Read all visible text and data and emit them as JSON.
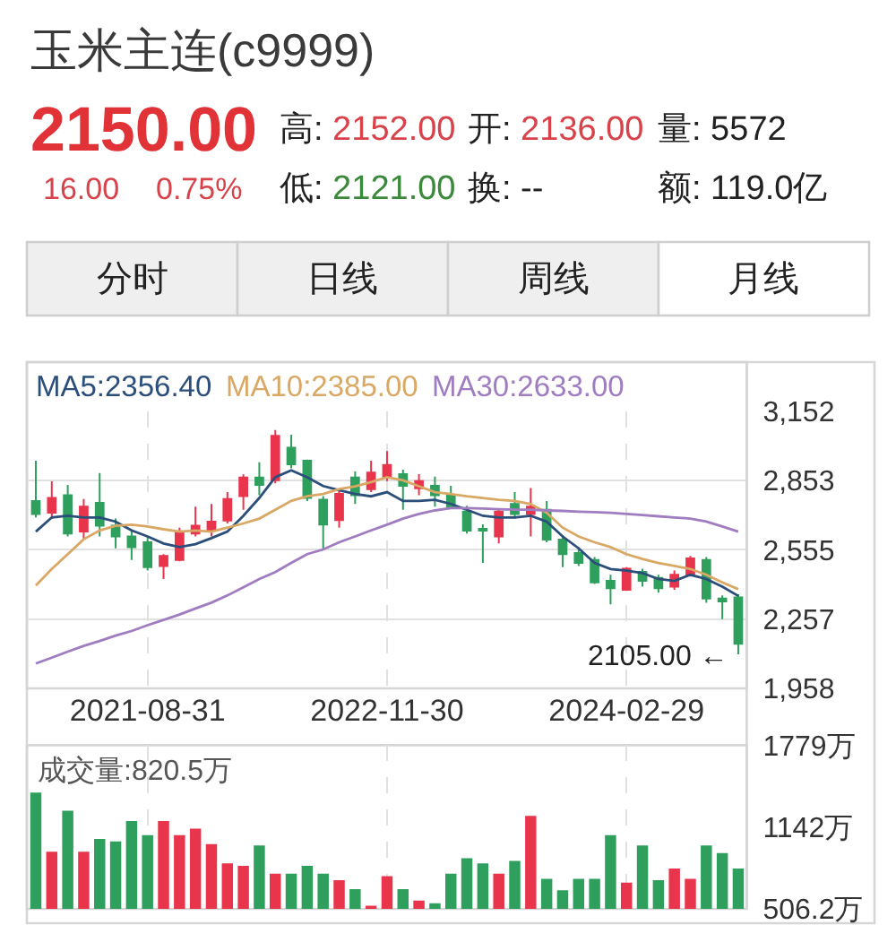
{
  "chart_data": [
    {
      "type": "other",
      "title": "玉米主连(c9999)",
      "annotations": [
        "2150.00",
        "16.00",
        "0.75%",
        "高: 2152.00",
        "开: 2136.00",
        "量: 5572",
        "低: 2121.00",
        "换: --",
        "额: 119.0亿",
        "分时",
        "日线",
        "周线",
        "月线"
      ]
    },
    {
      "type": "candlestick",
      "categories": [
        null,
        null,
        null,
        null,
        null,
        null,
        null,
        "2021-08-31",
        null,
        null,
        null,
        null,
        null,
        null,
        null,
        null,
        null,
        null,
        null,
        null,
        null,
        null,
        "2022-11-30",
        null,
        null,
        null,
        null,
        null,
        null,
        null,
        null,
        null,
        null,
        null,
        null,
        null,
        null,
        "2024-02-29",
        null,
        null,
        null,
        null,
        null,
        null,
        null
      ],
      "ohlc": [
        [
          2765,
          2938,
          2694,
          2709
        ],
        [
          2714,
          2849,
          2689,
          2778
        ],
        [
          2790,
          2834,
          2612,
          2625
        ],
        [
          2633,
          2773,
          2599,
          2740
        ],
        [
          2757,
          2885,
          2612,
          2658
        ],
        [
          2658,
          2689,
          2561,
          2612
        ],
        [
          2612,
          2637,
          2511,
          2566
        ],
        [
          2587,
          2612,
          2465,
          2480
        ],
        [
          2485,
          2536,
          2429,
          2528
        ],
        [
          2511,
          2650,
          2505,
          2630
        ],
        [
          2625,
          2740,
          2612,
          2658
        ],
        [
          2637,
          2752,
          2612,
          2676
        ],
        [
          2681,
          2803,
          2668,
          2773
        ],
        [
          2786,
          2879,
          2727,
          2866
        ],
        [
          2866,
          2931,
          2790,
          2834
        ],
        [
          2854,
          3070,
          2841,
          3045
        ],
        [
          2994,
          3050,
          2905,
          2923
        ],
        [
          2938,
          2943,
          2765,
          2778
        ],
        [
          2770,
          2786,
          2557,
          2663
        ],
        [
          2683,
          2811,
          2650,
          2795
        ],
        [
          2866,
          2892,
          2752,
          2790
        ],
        [
          2816,
          2938,
          2803,
          2887
        ],
        [
          2870,
          2980,
          2850,
          2920
        ],
        [
          2880,
          2900,
          2727,
          2830
        ],
        [
          2820,
          2880,
          2790,
          2850
        ],
        [
          2830,
          2870,
          2740,
          2790
        ],
        [
          2790,
          2830,
          2730,
          2740
        ],
        [
          2719,
          2744,
          2625,
          2637
        ],
        [
          2645,
          2664,
          2498,
          2637
        ],
        [
          2612,
          2734,
          2582,
          2719
        ],
        [
          2752,
          2803,
          2689,
          2709
        ],
        [
          2709,
          2821,
          2612,
          2740
        ],
        [
          2727,
          2765,
          2587,
          2599
        ],
        [
          2599,
          2618,
          2480,
          2536
        ],
        [
          2541,
          2566,
          2485,
          2498
        ],
        [
          2511,
          2523,
          2408,
          2414
        ],
        [
          2421,
          2447,
          2320,
          2389
        ],
        [
          2383,
          2480,
          2378,
          2473
        ],
        [
          2460,
          2473,
          2396,
          2421
        ],
        [
          2434,
          2447,
          2370,
          2389
        ],
        [
          2396,
          2465,
          2383,
          2447
        ],
        [
          2447,
          2528,
          2439,
          2518
        ],
        [
          2511,
          2523,
          2327,
          2345
        ],
        [
          2345,
          2358,
          2256,
          2332
        ],
        [
          2350,
          2363,
          2105,
          2150
        ]
      ],
      "colors": [
        "#2f9f5e",
        "#e8354c",
        "#2f9f5e",
        "#e8354c",
        "#2f9f5e",
        "#2f9f5e",
        "#2f9f5e",
        "#2f9f5e",
        "#e8354c",
        "#e8354c",
        "#e8354c",
        "#e8354c",
        "#e8354c",
        "#e8354c",
        "#2f9f5e",
        "#e8354c",
        "#2f9f5e",
        "#2f9f5e",
        "#2f9f5e",
        "#e8354c",
        "#2f9f5e",
        "#e8354c",
        "#e8354c",
        "#2f9f5e",
        "#e8354c",
        "#2f9f5e",
        "#2f9f5e",
        "#2f9f5e",
        "#2f9f5e",
        "#e8354c",
        "#2f9f5e",
        "#e8354c",
        "#2f9f5e",
        "#2f9f5e",
        "#2f9f5e",
        "#2f9f5e",
        "#2f9f5e",
        "#e8354c",
        "#2f9f5e",
        "#2f9f5e",
        "#e8354c",
        "#e8354c",
        "#2f9f5e",
        "#2f9f5e",
        "#2f9f5e"
      ],
      "series": [
        {
          "name": "MA5:2356.40",
          "type": "line",
          "color": "#2b4f7a",
          "values": [
            2633,
            2694,
            2701,
            2694,
            2694,
            2676,
            2638,
            2612,
            2582,
            2566,
            2579,
            2605,
            2633,
            2701,
            2778,
            2867,
            2897,
            2867,
            2829,
            2811,
            2795,
            2785,
            2803,
            2765,
            2765,
            2770,
            2752,
            2727,
            2701,
            2694,
            2694,
            2701,
            2676,
            2612,
            2561,
            2498,
            2472,
            2465,
            2454,
            2429,
            2421,
            2447,
            2429,
            2396,
            2356
          ]
        },
        {
          "name": "MA10:2385.00",
          "type": "line",
          "color": "#d9a865",
          "values": [
            2401,
            2472,
            2536,
            2600,
            2638,
            2658,
            2663,
            2655,
            2643,
            2633,
            2638,
            2633,
            2650,
            2668,
            2689,
            2727,
            2765,
            2785,
            2795,
            2816,
            2828,
            2846,
            2867,
            2854,
            2828,
            2803,
            2795,
            2785,
            2778,
            2770,
            2765,
            2752,
            2714,
            2650,
            2612,
            2587,
            2566,
            2536,
            2515,
            2498,
            2485,
            2472,
            2447,
            2414,
            2385
          ]
        },
        {
          "name": "MA30:2633.00",
          "type": "line",
          "color": "#a07cc0",
          "values": [
            2065,
            2090,
            2116,
            2141,
            2162,
            2185,
            2205,
            2230,
            2253,
            2276,
            2302,
            2327,
            2358,
            2393,
            2429,
            2459,
            2498,
            2536,
            2556,
            2587,
            2612,
            2638,
            2663,
            2689,
            2709,
            2724,
            2734,
            2734,
            2732,
            2729,
            2727,
            2727,
            2724,
            2722,
            2719,
            2717,
            2714,
            2709,
            2704,
            2699,
            2694,
            2689,
            2676,
            2655,
            2633
          ]
        }
      ],
      "ylim": [
        1958,
        3152
      ],
      "yticks": [
        {
          "value": 3152,
          "label": "3,152"
        },
        {
          "value": 2853,
          "label": "2,853"
        },
        {
          "value": 2555,
          "label": "2,555"
        },
        {
          "value": 2257,
          "label": "2,257"
        },
        {
          "value": 1958,
          "label": "1,958"
        }
      ],
      "grid": true,
      "legend": "top left",
      "annotations": [
        "2105.00 ←"
      ]
    },
    {
      "type": "bar",
      "title": "成交量:820.5万",
      "categories": [
        null,
        null,
        null,
        null,
        null,
        null,
        null,
        "2021-08-31",
        null,
        null,
        null,
        null,
        null,
        null,
        null,
        null,
        null,
        null,
        null,
        null,
        null,
        null,
        "2022-11-30",
        null,
        null,
        null,
        null,
        null,
        null,
        null,
        null,
        null,
        null,
        null,
        null,
        null,
        null,
        "2024-02-29",
        null,
        null,
        null,
        null,
        null,
        null,
        null
      ],
      "values": [
        1410,
        950,
        1270,
        950,
        1050,
        1030,
        1190,
        1080,
        1190,
        1080,
        1130,
        1010,
        860,
        840,
        1000,
        780,
        780,
        840,
        780,
        730,
        660,
        530,
        760,
        660,
        570,
        550,
        780,
        900,
        860,
        780,
        880,
        1230,
        740,
        650,
        740,
        740,
        1080,
        710,
        1000,
        730,
        820,
        740,
        1000,
        940,
        820
      ],
      "colors": [
        "#2f9f5e",
        "#e8354c",
        "#2f9f5e",
        "#e8354c",
        "#2f9f5e",
        "#2f9f5e",
        "#2f9f5e",
        "#2f9f5e",
        "#e8354c",
        "#e8354c",
        "#e8354c",
        "#e8354c",
        "#e8354c",
        "#e8354c",
        "#2f9f5e",
        "#e8354c",
        "#2f9f5e",
        "#2f9f5e",
        "#2f9f5e",
        "#e8354c",
        "#2f9f5e",
        "#e8354c",
        "#e8354c",
        "#2f9f5e",
        "#e8354c",
        "#2f9f5e",
        "#2f9f5e",
        "#2f9f5e",
        "#2f9f5e",
        "#e8354c",
        "#2f9f5e",
        "#e8354c",
        "#2f9f5e",
        "#2f9f5e",
        "#2f9f5e",
        "#2f9f5e",
        "#2f9f5e",
        "#e8354c",
        "#2f9f5e",
        "#2f9f5e",
        "#e8354c",
        "#e8354c",
        "#2f9f5e",
        "#2f9f5e",
        "#2f9f5e"
      ],
      "ylim": [
        506.2,
        1779
      ],
      "yticks": [
        {
          "value": 1779,
          "label": "1779万"
        },
        {
          "value": 1142,
          "label": "1142万"
        },
        {
          "value": 506.2,
          "label": "506.2万"
        }
      ],
      "grid": "x",
      "tick_labels": "y"
    }
  ]
}
